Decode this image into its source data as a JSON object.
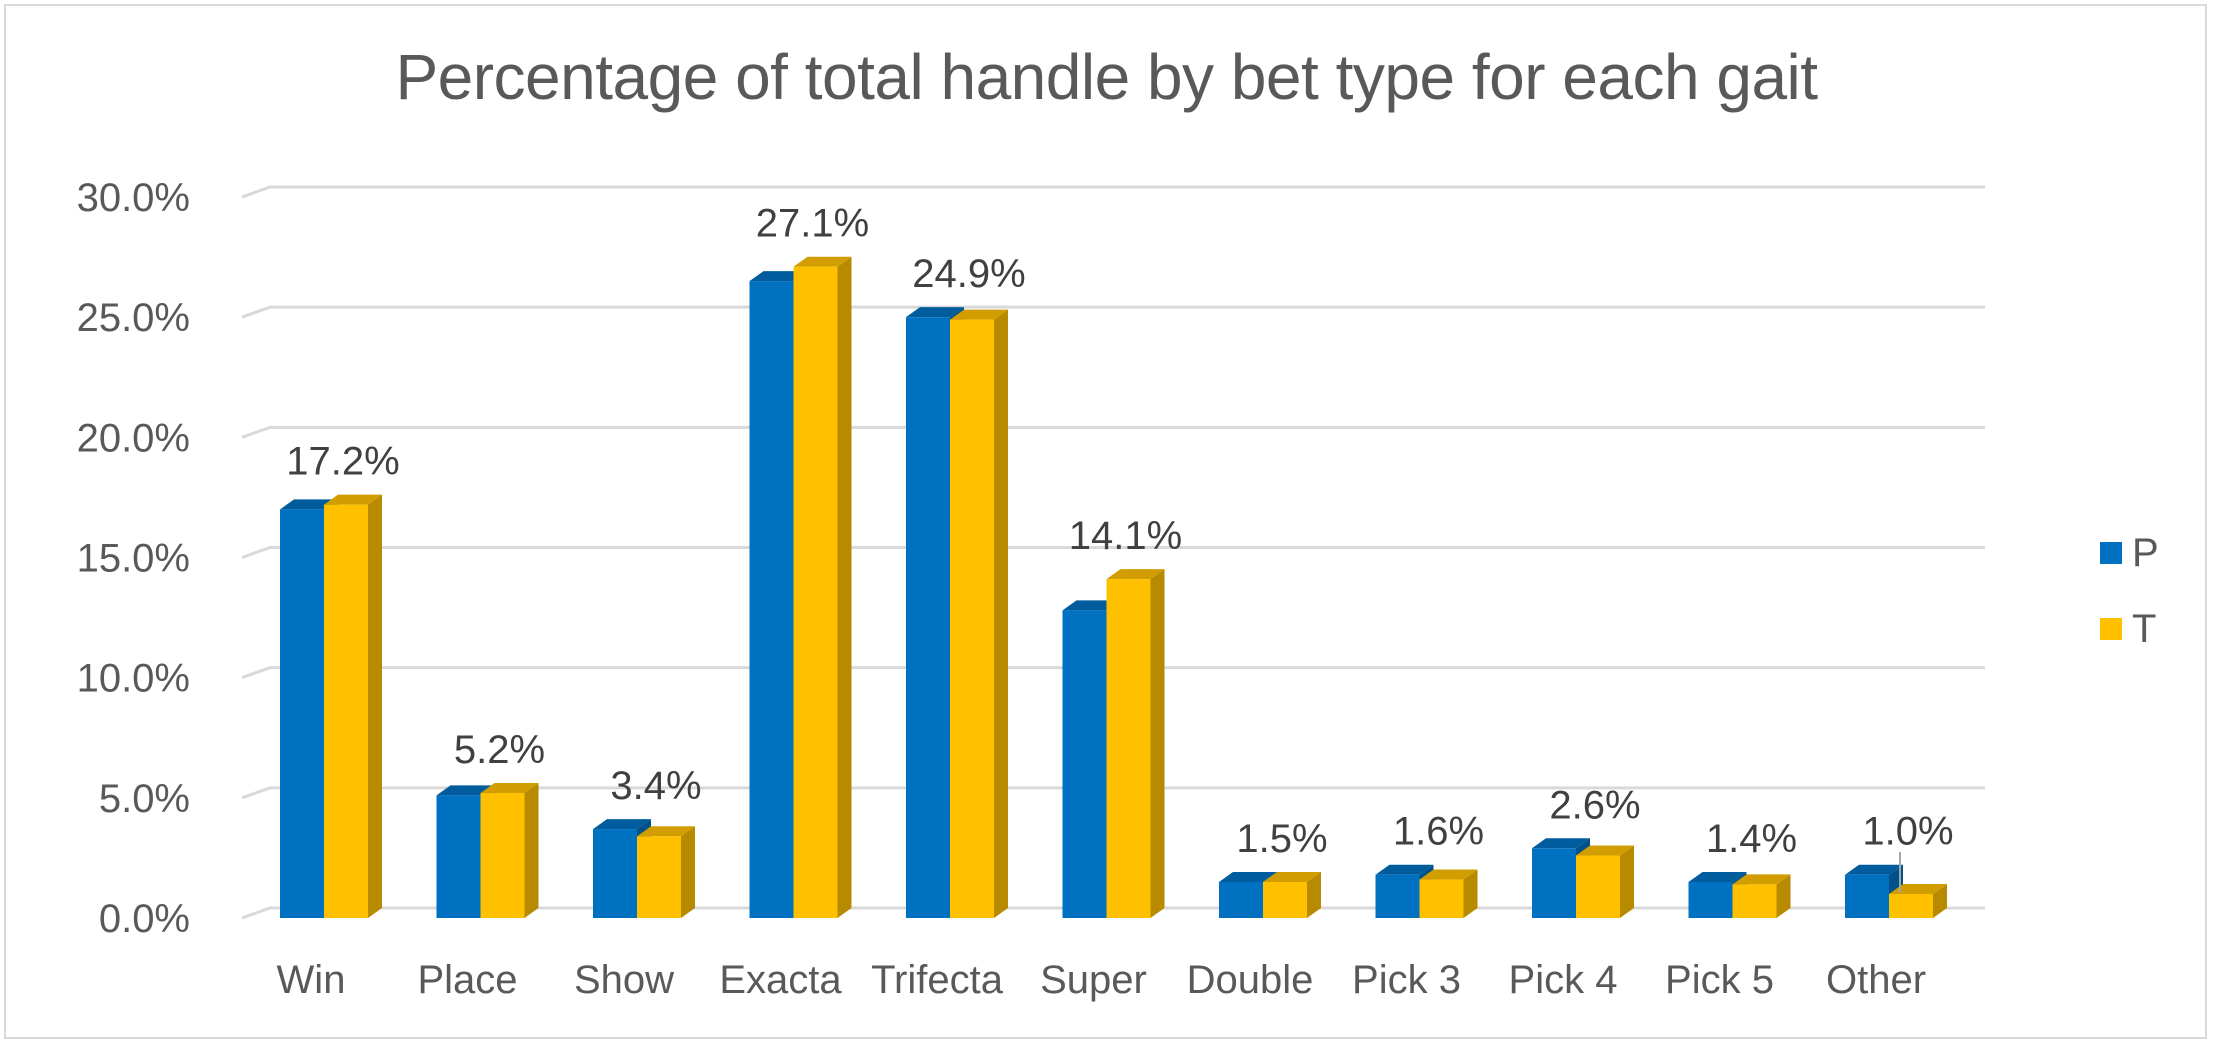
{
  "chart_data": {
    "type": "bar",
    "title": "Percentage of total handle by bet type for each gait",
    "xlabel": "",
    "ylabel": "",
    "categories": [
      "Win",
      "Place",
      "Show",
      "Exacta",
      "Trifecta",
      "Super",
      "Double",
      "Pick 3",
      "Pick 4",
      "Pick 5",
      "Other"
    ],
    "series": [
      {
        "name": "P",
        "color": "#0070c0",
        "values": [
          17.0,
          5.1,
          3.7,
          26.5,
          25.0,
          12.8,
          1.5,
          1.8,
          2.9,
          1.5,
          1.8
        ]
      },
      {
        "name": "T",
        "color": "#ffc000",
        "values": [
          17.2,
          5.2,
          3.4,
          27.1,
          24.9,
          14.1,
          1.5,
          1.6,
          2.6,
          1.4,
          1.0
        ]
      }
    ],
    "data_labels": [
      "17.2%",
      "5.2%",
      "3.4%",
      "27.1%",
      "24.9%",
      "14.1%",
      "1.5%",
      "1.6%",
      "2.6%",
      "1.4%",
      "1.0%"
    ],
    "ylim": [
      0,
      30
    ],
    "yticks": [
      0,
      5,
      10,
      15,
      20,
      25,
      30
    ],
    "ytick_labels": [
      "0.0%",
      "5.0%",
      "10.0%",
      "15.0%",
      "20.0%",
      "25.0%",
      "30.0%"
    ],
    "grid": true,
    "legend_position": "right",
    "style": "3d-clustered-column"
  }
}
